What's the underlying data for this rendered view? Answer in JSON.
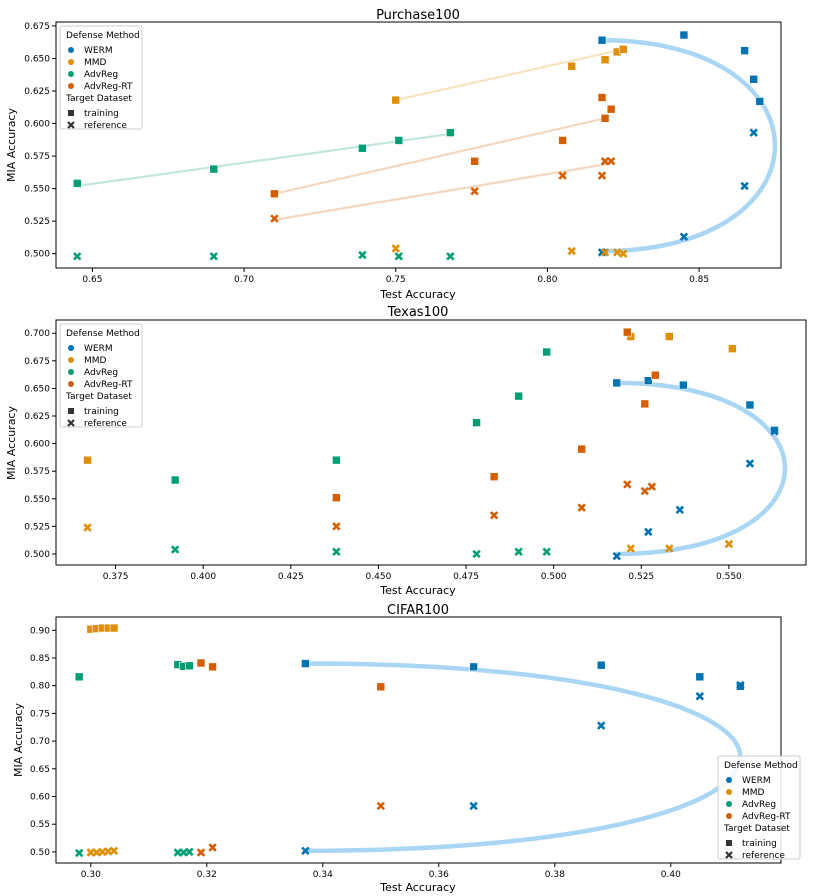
{
  "colors": {
    "WERM": "#0173b2",
    "MMD": "#de8f05",
    "AdvReg": "#029e73",
    "AdvReg-RT": "#d55e00",
    "trend": "#a9d6f5"
  },
  "legend_labels": {
    "method_title": "Defense Method",
    "dataset_title": "Target Dataset",
    "methods": [
      "WERM",
      "MMD",
      "AdvReg",
      "AdvReg-RT"
    ],
    "datasets": [
      "training",
      "reference"
    ]
  },
  "chart_data": [
    {
      "type": "scatter",
      "title": "Purchase100",
      "xlabel": "Test Accuracy",
      "ylabel": "MIA Accuracy",
      "xlim": [
        0.638,
        0.877
      ],
      "ylim": [
        0.489,
        0.678
      ],
      "xticks": [
        0.65,
        0.7,
        0.75,
        0.8,
        0.85
      ],
      "xtick_labels": [
        "0.65",
        "0.70",
        "0.75",
        "0.80",
        "0.85"
      ],
      "yticks": [
        0.5,
        0.525,
        0.55,
        0.575,
        0.6,
        0.625,
        0.65,
        0.675
      ],
      "ytick_labels": [
        "0.500",
        "0.525",
        "0.550",
        "0.575",
        "0.600",
        "0.625",
        "0.650",
        "0.675"
      ],
      "legend_position": "top-left",
      "series": [
        {
          "name": "WERM",
          "training": [
            [
              0.818,
              0.664
            ],
            [
              0.845,
              0.668
            ],
            [
              0.865,
              0.656
            ],
            [
              0.868,
              0.634
            ],
            [
              0.87,
              0.617
            ]
          ],
          "reference": [
            [
              0.818,
              0.501
            ],
            [
              0.845,
              0.513
            ],
            [
              0.865,
              0.552
            ],
            [
              0.868,
              0.593
            ]
          ]
        },
        {
          "name": "MMD",
          "training": [
            [
              0.75,
              0.618
            ],
            [
              0.808,
              0.644
            ],
            [
              0.819,
              0.649
            ],
            [
              0.823,
              0.655
            ],
            [
              0.825,
              0.657
            ]
          ],
          "reference": [
            [
              0.75,
              0.504
            ],
            [
              0.808,
              0.502
            ],
            [
              0.819,
              0.501
            ],
            [
              0.823,
              0.501
            ],
            [
              0.825,
              0.5
            ]
          ]
        },
        {
          "name": "AdvReg",
          "training": [
            [
              0.645,
              0.554
            ],
            [
              0.69,
              0.565
            ],
            [
              0.739,
              0.581
            ],
            [
              0.751,
              0.587
            ],
            [
              0.768,
              0.593
            ]
          ],
          "reference": [
            [
              0.645,
              0.498
            ],
            [
              0.69,
              0.498
            ],
            [
              0.739,
              0.499
            ],
            [
              0.751,
              0.498
            ],
            [
              0.768,
              0.498
            ]
          ]
        },
        {
          "name": "AdvReg-RT",
          "training": [
            [
              0.71,
              0.546
            ],
            [
              0.776,
              0.571
            ],
            [
              0.805,
              0.587
            ],
            [
              0.818,
              0.62
            ],
            [
              0.819,
              0.604
            ],
            [
              0.821,
              0.611
            ]
          ],
          "reference": [
            [
              0.71,
              0.527
            ],
            [
              0.776,
              0.548
            ],
            [
              0.805,
              0.56
            ],
            [
              0.818,
              0.56
            ],
            [
              0.819,
              0.571
            ],
            [
              0.821,
              0.571
            ]
          ]
        }
      ],
      "trend_lines": [
        {
          "color": "MMD",
          "points": [
            [
              0.75,
              0.618
            ],
            [
              0.825,
              0.657
            ]
          ]
        },
        {
          "color": "AdvReg",
          "points": [
            [
              0.645,
              0.552
            ],
            [
              0.768,
              0.592
            ]
          ]
        },
        {
          "color": "AdvReg-RT",
          "points": [
            [
              0.71,
              0.546
            ],
            [
              0.819,
              0.604
            ]
          ]
        },
        {
          "color": "AdvReg-RT",
          "points": [
            [
              0.71,
              0.526
            ],
            [
              0.82,
              0.569
            ]
          ]
        }
      ],
      "arc": {
        "start": [
          0.818,
          0.502
        ],
        "end": [
          0.818,
          0.664
        ],
        "x_peak": 0.875
      }
    },
    {
      "type": "scatter",
      "title": "Texas100",
      "xlabel": "Test Accuracy",
      "ylabel": "MIA Accuracy",
      "xlim": [
        0.358,
        0.572
      ],
      "ylim": [
        0.49,
        0.712
      ],
      "xticks": [
        0.375,
        0.4,
        0.425,
        0.45,
        0.475,
        0.5,
        0.525,
        0.55
      ],
      "xtick_labels": [
        "0.375",
        "0.400",
        "0.425",
        "0.450",
        "0.475",
        "0.500",
        "0.525",
        "0.550"
      ],
      "yticks": [
        0.5,
        0.525,
        0.55,
        0.575,
        0.6,
        0.625,
        0.65,
        0.675,
        0.7
      ],
      "ytick_labels": [
        "0.500",
        "0.525",
        "0.550",
        "0.575",
        "0.600",
        "0.625",
        "0.650",
        "0.675",
        "0.700"
      ],
      "legend_position": "top-left",
      "series": [
        {
          "name": "WERM",
          "training": [
            [
              0.518,
              0.655
            ],
            [
              0.527,
              0.657
            ],
            [
              0.537,
              0.653
            ],
            [
              0.556,
              0.635
            ],
            [
              0.563,
              0.612
            ]
          ],
          "reference": [
            [
              0.518,
              0.498
            ],
            [
              0.527,
              0.52
            ],
            [
              0.536,
              0.54
            ],
            [
              0.556,
              0.582
            ],
            [
              0.563,
              0.611
            ]
          ]
        },
        {
          "name": "MMD",
          "training": [
            [
              0.367,
              0.585
            ],
            [
              0.483,
              0.57
            ],
            [
              0.522,
              0.697
            ],
            [
              0.533,
              0.697
            ],
            [
              0.551,
              0.686
            ]
          ],
          "reference": [
            [
              0.367,
              0.524
            ],
            [
              0.522,
              0.505
            ],
            [
              0.533,
              0.505
            ],
            [
              0.55,
              0.509
            ]
          ]
        },
        {
          "name": "AdvReg",
          "training": [
            [
              0.392,
              0.567
            ],
            [
              0.438,
              0.585
            ],
            [
              0.478,
              0.619
            ],
            [
              0.49,
              0.643
            ],
            [
              0.498,
              0.683
            ]
          ],
          "reference": [
            [
              0.392,
              0.504
            ],
            [
              0.438,
              0.502
            ],
            [
              0.478,
              0.5
            ],
            [
              0.49,
              0.502
            ],
            [
              0.498,
              0.502
            ]
          ]
        },
        {
          "name": "AdvReg-RT",
          "training": [
            [
              0.438,
              0.551
            ],
            [
              0.483,
              0.57
            ],
            [
              0.508,
              0.595
            ],
            [
              0.521,
              0.701
            ],
            [
              0.526,
              0.636
            ],
            [
              0.529,
              0.662
            ]
          ],
          "reference": [
            [
              0.438,
              0.525
            ],
            [
              0.483,
              0.535
            ],
            [
              0.508,
              0.542
            ],
            [
              0.521,
              0.563
            ],
            [
              0.526,
              0.557
            ],
            [
              0.528,
              0.561
            ]
          ]
        }
      ],
      "trend_lines": [],
      "arc": {
        "start": [
          0.518,
          0.5
        ],
        "end": [
          0.518,
          0.655
        ],
        "x_peak": 0.566
      }
    },
    {
      "type": "scatter",
      "title": "CIFAR100",
      "xlabel": "Test Accuracy",
      "ylabel": "MIA Accuracy",
      "xlim": [
        0.294,
        0.419
      ],
      "ylim": [
        0.48,
        0.924
      ],
      "xticks": [
        0.3,
        0.32,
        0.34,
        0.36,
        0.38,
        0.4
      ],
      "xtick_labels": [
        "0.30",
        "0.32",
        "0.34",
        "0.36",
        "0.38",
        "0.40"
      ],
      "yticks": [
        0.5,
        0.55,
        0.6,
        0.65,
        0.7,
        0.75,
        0.8,
        0.85,
        0.9
      ],
      "ytick_labels": [
        "0.50",
        "0.55",
        "0.60",
        "0.65",
        "0.70",
        "0.75",
        "0.80",
        "0.85",
        "0.90"
      ],
      "legend_position": "bottom-right",
      "series": [
        {
          "name": "WERM",
          "training": [
            [
              0.337,
              0.84
            ],
            [
              0.366,
              0.834
            ],
            [
              0.388,
              0.837
            ],
            [
              0.405,
              0.816
            ],
            [
              0.412,
              0.799
            ]
          ],
          "reference": [
            [
              0.337,
              0.502
            ],
            [
              0.366,
              0.583
            ],
            [
              0.388,
              0.728
            ],
            [
              0.405,
              0.781
            ],
            [
              0.412,
              0.801
            ]
          ]
        },
        {
          "name": "MMD",
          "training": [
            [
              0.3,
              0.902
            ],
            [
              0.301,
              0.903
            ],
            [
              0.302,
              0.904
            ],
            [
              0.303,
              0.904
            ],
            [
              0.304,
              0.904
            ]
          ],
          "reference": [
            [
              0.3,
              0.499
            ],
            [
              0.301,
              0.499
            ],
            [
              0.302,
              0.5
            ],
            [
              0.303,
              0.501
            ],
            [
              0.304,
              0.502
            ]
          ]
        },
        {
          "name": "AdvReg",
          "training": [
            [
              0.298,
              0.816
            ],
            [
              0.315,
              0.838
            ],
            [
              0.316,
              0.835
            ],
            [
              0.317,
              0.836
            ]
          ],
          "reference": [
            [
              0.298,
              0.498
            ],
            [
              0.315,
              0.499
            ],
            [
              0.316,
              0.499
            ],
            [
              0.317,
              0.5
            ]
          ]
        },
        {
          "name": "AdvReg-RT",
          "training": [
            [
              0.319,
              0.841
            ],
            [
              0.321,
              0.834
            ],
            [
              0.35,
              0.798
            ]
          ],
          "reference": [
            [
              0.319,
              0.499
            ],
            [
              0.321,
              0.508
            ],
            [
              0.35,
              0.583
            ]
          ]
        }
      ],
      "trend_lines": [],
      "arc": {
        "start": [
          0.337,
          0.502
        ],
        "end": [
          0.337,
          0.84
        ],
        "x_peak": 0.412
      }
    }
  ]
}
